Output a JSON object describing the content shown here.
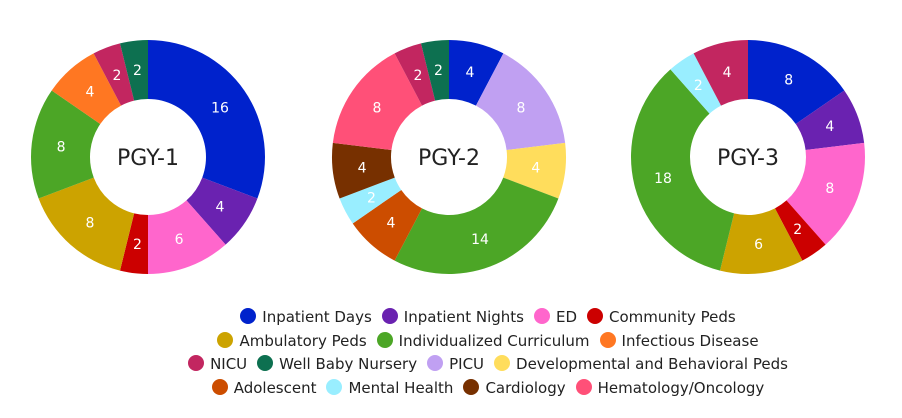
{
  "chart_data": [
    {
      "type": "pie",
      "title": "PGY-1",
      "categories": [
        "Inpatient Days",
        "Inpatient Nights",
        "ED",
        "Community Peds",
        "Ambulatory Peds",
        "Individualized Curriculum",
        "Infectious Disease",
        "NICU",
        "Well Baby Nursery"
      ],
      "values": [
        16,
        4,
        6,
        2,
        8,
        8,
        4,
        2,
        2
      ]
    },
    {
      "type": "pie",
      "title": "PGY-2",
      "categories": [
        "Inpatient Days",
        "PICU",
        "Developmental and Behavioral Peds",
        "Individualized Curriculum",
        "Adolescent",
        "Mental Health",
        "Cardiology",
        "Hematology/Oncology",
        "NICU",
        "Well Baby Nursery"
      ],
      "values": [
        4,
        8,
        4,
        14,
        4,
        2,
        4,
        8,
        2,
        2
      ]
    },
    {
      "type": "pie",
      "title": "PGY-3",
      "categories": [
        "Inpatient Days",
        "Inpatient Nights",
        "ED",
        "Community Peds",
        "Ambulatory Peds",
        "Individualized Curriculum",
        "Mental Health",
        "NICU"
      ],
      "values": [
        8,
        4,
        8,
        2,
        6,
        18,
        2,
        4
      ]
    }
  ],
  "legend": {
    "placement": "bottom",
    "rows": [
      [
        "Inpatient Days",
        "Inpatient Nights",
        "ED",
        "Community Peds"
      ],
      [
        "Ambulatory Peds",
        "Individualized Curriculum",
        "Infectious Disease"
      ],
      [
        "NICU",
        "Well Baby Nursery",
        "PICU",
        "Developmental and Behavioral Peds"
      ],
      [
        "Adolescent",
        "Mental Health",
        "Cardiology",
        "Hematology/Oncology"
      ]
    ]
  },
  "colors": {
    "Inpatient Days": "#0022cc",
    "Inpatient Nights": "#6a22b0",
    "ED": "#ff66cc",
    "Community Peds": "#cc0000",
    "Ambulatory Peds": "#cca300",
    "Individualized Curriculum": "#4ca626",
    "Infectious Disease": "#ff7722",
    "NICU": "#c22660",
    "Well Baby Nursery": "#0d7050",
    "PICU": "#c0a0f2",
    "Developmental and Behavioral Peds": "#ffdd5c",
    "Adolescent": "#cc4d00",
    "Mental Health": "#99eeff",
    "Cardiology": "#773000",
    "Hematology/Oncology": "#ff5078"
  }
}
